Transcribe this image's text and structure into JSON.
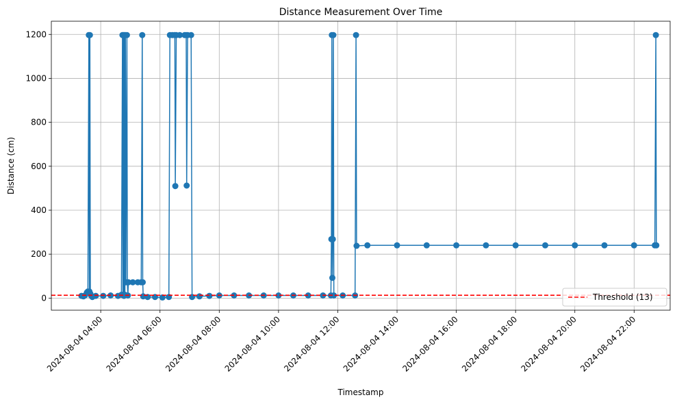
{
  "chart_data": {
    "type": "line",
    "title": "Distance Measurement Over Time",
    "xlabel": "Timestamp",
    "ylabel": "Distance (cm)",
    "x_type": "datetime",
    "xlim": [
      "2024-08-04 02:20",
      "2024-08-04 23:13"
    ],
    "ylim": [
      -55,
      1260
    ],
    "x_ticks": [
      "2024-08-04 04:00",
      "2024-08-04 06:00",
      "2024-08-04 08:00",
      "2024-08-04 10:00",
      "2024-08-04 12:00",
      "2024-08-04 14:00",
      "2024-08-04 16:00",
      "2024-08-04 18:00",
      "2024-08-04 20:00",
      "2024-08-04 22:00"
    ],
    "y_ticks": [
      0,
      200,
      400,
      600,
      800,
      1000,
      1200
    ],
    "grid": true,
    "legend": "lower right",
    "series": [
      {
        "color": "#1f77b4",
        "marker": "circle",
        "points": [
          [
            "2024-08-04 03:21",
            10
          ],
          [
            "2024-08-04 03:25",
            8
          ],
          [
            "2024-08-04 03:28",
            12
          ],
          [
            "2024-08-04 03:32",
            25
          ],
          [
            "2024-08-04 03:34",
            30
          ],
          [
            "2024-08-04 03:36",
            1197
          ],
          [
            "2024-08-04 03:37",
            30
          ],
          [
            "2024-08-04 03:38",
            1197
          ],
          [
            "2024-08-04 03:39",
            20
          ],
          [
            "2024-08-04 03:41",
            10
          ],
          [
            "2024-08-04 03:43",
            5
          ],
          [
            "2024-08-04 03:50",
            10
          ],
          [
            "2024-08-04 04:05",
            10
          ],
          [
            "2024-08-04 04:20",
            12
          ],
          [
            "2024-08-04 04:35",
            10
          ],
          [
            "2024-08-04 04:42",
            15
          ],
          [
            "2024-08-04 04:44",
            1197
          ],
          [
            "2024-08-04 04:45",
            15
          ],
          [
            "2024-08-04 04:46",
            1197
          ],
          [
            "2024-08-04 04:47",
            10
          ],
          [
            "2024-08-04 04:48",
            1197
          ],
          [
            "2024-08-04 04:49",
            15
          ],
          [
            "2024-08-04 04:50",
            1197
          ],
          [
            "2024-08-04 04:51",
            72
          ],
          [
            "2024-08-04 04:53",
            1197
          ],
          [
            "2024-08-04 04:54",
            72
          ],
          [
            "2024-08-04 04:55",
            12
          ],
          [
            "2024-08-04 04:56",
            72
          ],
          [
            "2024-08-04 05:05",
            72
          ],
          [
            "2024-08-04 05:15",
            72
          ],
          [
            "2024-08-04 05:22",
            72
          ],
          [
            "2024-08-04 05:24",
            1197
          ],
          [
            "2024-08-04 05:25",
            72
          ],
          [
            "2024-08-04 05:26",
            8
          ],
          [
            "2024-08-04 05:35",
            5
          ],
          [
            "2024-08-04 05:50",
            5
          ],
          [
            "2024-08-04 06:05",
            3
          ],
          [
            "2024-08-04 06:18",
            5
          ],
          [
            "2024-08-04 06:20",
            1197
          ],
          [
            "2024-08-04 06:25",
            1197
          ],
          [
            "2024-08-04 06:30",
            1197
          ],
          [
            "2024-08-04 06:31",
            510
          ],
          [
            "2024-08-04 06:33",
            1197
          ],
          [
            "2024-08-04 06:40",
            1197
          ],
          [
            "2024-08-04 06:50",
            1197
          ],
          [
            "2024-08-04 06:53",
            1197
          ],
          [
            "2024-08-04 06:54",
            512
          ],
          [
            "2024-08-04 06:56",
            1197
          ],
          [
            "2024-08-04 07:03",
            1197
          ],
          [
            "2024-08-04 07:05",
            5
          ],
          [
            "2024-08-04 07:20",
            8
          ],
          [
            "2024-08-04 07:40",
            10
          ],
          [
            "2024-08-04 08:00",
            12
          ],
          [
            "2024-08-04 08:30",
            12
          ],
          [
            "2024-08-04 09:00",
            12
          ],
          [
            "2024-08-04 09:30",
            12
          ],
          [
            "2024-08-04 10:00",
            12
          ],
          [
            "2024-08-04 10:30",
            12
          ],
          [
            "2024-08-04 11:00",
            12
          ],
          [
            "2024-08-04 11:30",
            12
          ],
          [
            "2024-08-04 11:46",
            12
          ],
          [
            "2024-08-04 11:47",
            268
          ],
          [
            "2024-08-04 11:48",
            1197
          ],
          [
            "2024-08-04 11:49",
            92
          ],
          [
            "2024-08-04 11:50",
            268
          ],
          [
            "2024-08-04 11:51",
            1197
          ],
          [
            "2024-08-04 11:52",
            12
          ],
          [
            "2024-08-04 12:10",
            12
          ],
          [
            "2024-08-04 12:35",
            12
          ],
          [
            "2024-08-04 12:37",
            1197
          ],
          [
            "2024-08-04 12:38",
            238
          ],
          [
            "2024-08-04 13:00",
            240
          ],
          [
            "2024-08-04 14:00",
            240
          ],
          [
            "2024-08-04 15:00",
            240
          ],
          [
            "2024-08-04 16:00",
            240
          ],
          [
            "2024-08-04 17:00",
            240
          ],
          [
            "2024-08-04 18:00",
            240
          ],
          [
            "2024-08-04 19:00",
            240
          ],
          [
            "2024-08-04 20:00",
            240
          ],
          [
            "2024-08-04 21:00",
            240
          ],
          [
            "2024-08-04 22:00",
            240
          ],
          [
            "2024-08-04 22:42",
            240
          ],
          [
            "2024-08-04 22:44",
            1197
          ],
          [
            "2024-08-04 22:45",
            240
          ]
        ]
      }
    ],
    "reference_lines": [
      {
        "label": "Threshold (13)",
        "y": 13,
        "color": "#ff0000",
        "style": "dashed"
      }
    ]
  }
}
